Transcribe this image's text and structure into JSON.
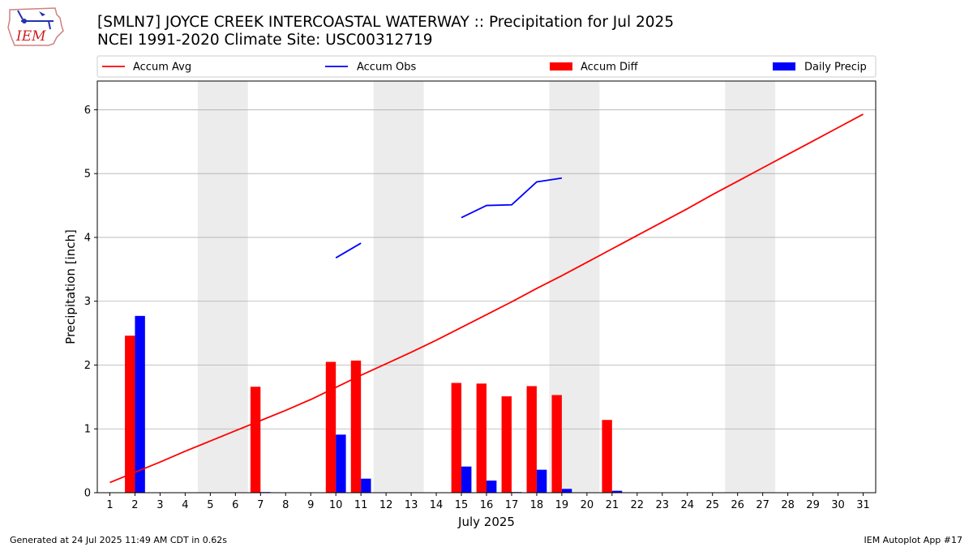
{
  "header": {
    "title_line1": "[SMLN7] JOYCE CREEK INTERCOASTAL WATERWAY :: Precipitation for Jul 2025",
    "title_line2": "NCEI 1991-2020 Climate Site: USC00312719"
  },
  "logo": {
    "text": "IEM"
  },
  "footer": {
    "left": "Generated at 24 Jul 2025 11:49 AM CDT in 0.62s",
    "right": "IEM Autoplot App #17"
  },
  "colors": {
    "avg": "#ff0000",
    "obs": "#0000ff",
    "diff": "#ff0000",
    "daily": "#0000ff",
    "weekend": "#ececec",
    "grid": "#b0b0b0"
  },
  "chart_data": {
    "type": "bar",
    "xlabel": "July 2025",
    "ylabel": "Precipitation [inch]",
    "ylim": [
      0,
      6.45
    ],
    "yticks": [
      0,
      1,
      2,
      3,
      4,
      5,
      6
    ],
    "xlim": [
      0.5,
      31.5
    ],
    "days": [
      1,
      2,
      3,
      4,
      5,
      6,
      7,
      8,
      9,
      10,
      11,
      12,
      13,
      14,
      15,
      16,
      17,
      18,
      19,
      20,
      21,
      22,
      23,
      24,
      25,
      26,
      27,
      28,
      29,
      30,
      31
    ],
    "legend": {
      "placement": "top",
      "entries": [
        "Accum Avg",
        "Accum Obs",
        "Accum Diff",
        "Daily Precip"
      ]
    },
    "weekend_bands": [
      [
        5,
        6
      ],
      [
        12,
        13
      ],
      [
        19,
        20
      ],
      [
        26,
        27
      ]
    ],
    "grid": "horizontal",
    "series": [
      {
        "name": "Accum Avg",
        "kind": "line",
        "x": [
          1,
          2,
          3,
          4,
          5,
          6,
          7,
          8,
          9,
          10,
          11,
          12,
          13,
          14,
          15,
          16,
          17,
          18,
          19,
          20,
          21,
          22,
          23,
          24,
          25,
          26,
          27,
          28,
          29,
          30,
          31
        ],
        "values": [
          0.16,
          0.32,
          0.48,
          0.65,
          0.81,
          0.97,
          1.13,
          1.29,
          1.46,
          1.65,
          1.84,
          2.02,
          2.2,
          2.39,
          2.59,
          2.79,
          2.99,
          3.2,
          3.4,
          3.61,
          3.82,
          4.03,
          4.24,
          4.45,
          4.67,
          4.88,
          5.09,
          5.3,
          5.51,
          5.72,
          5.93
        ]
      },
      {
        "name": "Accum Obs",
        "kind": "line",
        "segments": [
          {
            "x": [
              10,
              11
            ],
            "values": [
              3.68,
              3.91
            ]
          },
          {
            "x": [
              15,
              16,
              17,
              18,
              19
            ],
            "values": [
              4.31,
              4.5,
              4.51,
              4.87,
              4.93
            ]
          }
        ]
      },
      {
        "name": "Accum Diff",
        "kind": "bar",
        "x": [
          2,
          7,
          10,
          11,
          15,
          16,
          17,
          18,
          19,
          21
        ],
        "values": [
          2.46,
          1.66,
          2.05,
          2.07,
          1.72,
          1.71,
          1.51,
          1.67,
          1.53,
          1.14
        ]
      },
      {
        "name": "Daily Precip",
        "kind": "bar",
        "x": [
          2,
          7,
          10,
          11,
          15,
          16,
          17,
          18,
          19,
          21
        ],
        "values": [
          2.77,
          0.01,
          0.91,
          0.22,
          0.41,
          0.19,
          0.01,
          0.36,
          0.06,
          0.03
        ]
      }
    ]
  }
}
